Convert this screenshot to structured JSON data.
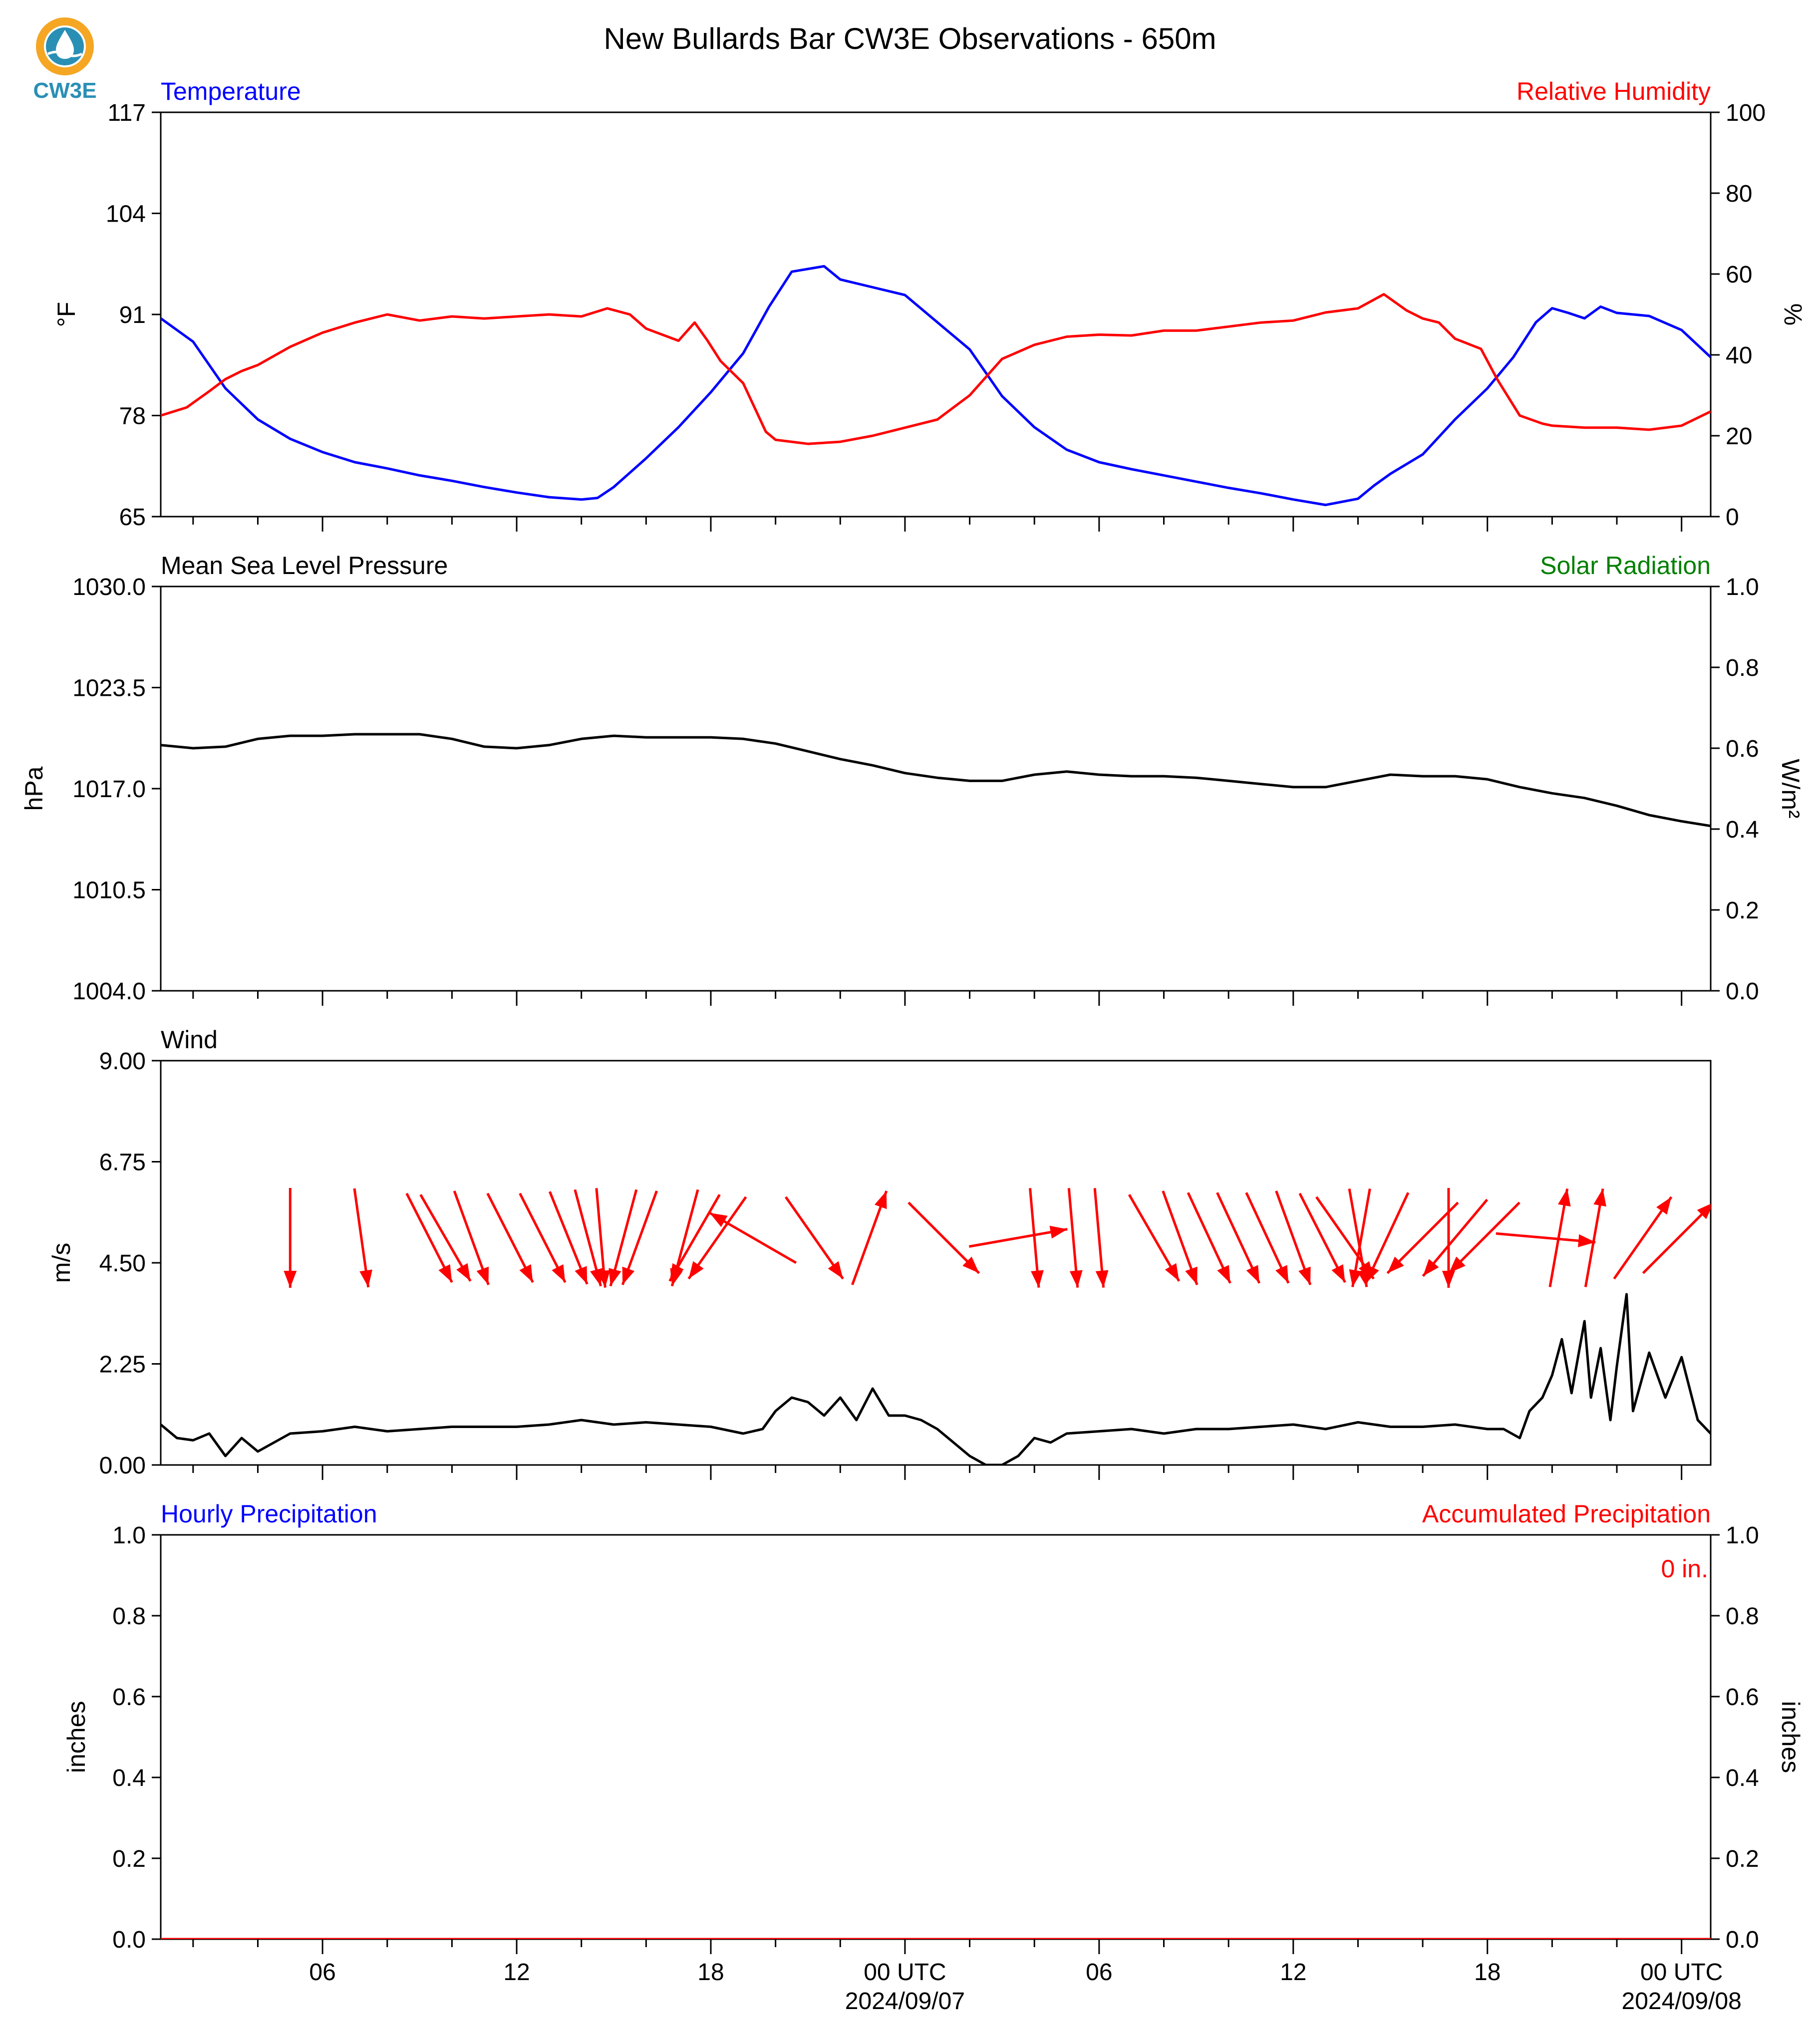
{
  "title": "New Bullards Bar CW3E Observations - 650m",
  "logo": {
    "text": "CW3E",
    "color": "#2a8fb5",
    "ring_color": "#f5a623"
  },
  "time_axis": {
    "start_hour": 1,
    "end_hour": 48.9,
    "tick_labels": [
      {
        "hour": 6,
        "label": "06",
        "date": ""
      },
      {
        "hour": 12,
        "label": "12",
        "date": ""
      },
      {
        "hour": 18,
        "label": "18",
        "date": ""
      },
      {
        "hour": 24,
        "label": "00 UTC",
        "date": "2024/09/07"
      },
      {
        "hour": 30,
        "label": "06",
        "date": ""
      },
      {
        "hour": 36,
        "label": "12",
        "date": ""
      },
      {
        "hour": 42,
        "label": "18",
        "date": ""
      },
      {
        "hour": 48,
        "label": "00 UTC",
        "date": "2024/09/08"
      }
    ]
  },
  "chart_data": [
    {
      "type": "line",
      "id": "temp_rh",
      "left_title": "Temperature",
      "left_title_color": "#0000ff",
      "right_title": "Relative Humidity",
      "right_title_color": "#ff0000",
      "ylabel": "°F",
      "ylabel_right": "%",
      "ylim": [
        65,
        117
      ],
      "ylim_right": [
        0,
        100
      ],
      "yticks": [
        "65",
        "78",
        "91",
        "104",
        "117"
      ],
      "yticks_right": [
        "0",
        "20",
        "40",
        "60",
        "80",
        "100"
      ],
      "series": [
        {
          "axis": "left",
          "color": "#0000ff",
          "x": [
            1,
            2,
            3,
            4,
            5,
            6,
            7,
            8,
            9,
            10,
            11,
            12,
            13,
            14,
            14.5,
            15,
            16,
            17,
            18,
            19,
            19.8,
            20.5,
            21.5,
            22,
            23,
            24,
            25,
            26,
            27,
            28,
            29,
            30,
            31,
            32,
            33,
            34,
            35,
            36,
            37,
            38,
            38.5,
            39,
            40,
            41,
            42,
            42.8,
            43.5,
            44,
            44.5,
            45,
            45.5,
            46,
            47,
            48,
            48.9
          ],
          "y": [
            90.5,
            87.5,
            81.5,
            77.5,
            75,
            73.3,
            72,
            71.2,
            70.3,
            69.6,
            68.8,
            68.1,
            67.5,
            67.2,
            67.4,
            68.8,
            72.5,
            76.5,
            81,
            86,
            92,
            96.5,
            97.2,
            95.5,
            94.5,
            93.5,
            90,
            86.5,
            80.5,
            76.5,
            73.6,
            72,
            71.1,
            70.3,
            69.5,
            68.7,
            68,
            67.2,
            66.5,
            67.3,
            69,
            70.5,
            73,
            77.5,
            81.5,
            85.5,
            90,
            91.8,
            91.2,
            90.5,
            92,
            91.2,
            90.8,
            89,
            85.5
          ]
        },
        {
          "axis": "right",
          "color": "#ff0000",
          "x": [
            1,
            1.8,
            2.5,
            3,
            3.5,
            4,
            5,
            6,
            7,
            8,
            9,
            10,
            11,
            12,
            13,
            14,
            14.8,
            15.5,
            16,
            17,
            17.5,
            17.9,
            18.3,
            19,
            19.7,
            20,
            21,
            22,
            23,
            24,
            25,
            26,
            27,
            28,
            29,
            30,
            31,
            32,
            33,
            34,
            35,
            36,
            37,
            38,
            38.8,
            39.5,
            40,
            40.5,
            41,
            41.8,
            42.3,
            43,
            43.7,
            44,
            45,
            46,
            47,
            48,
            48.9
          ],
          "y": [
            25,
            27,
            31,
            34,
            36,
            37.5,
            42,
            45.5,
            48,
            50,
            48.5,
            49.5,
            49,
            49.5,
            50,
            49.5,
            51.5,
            50,
            46.5,
            43.5,
            48,
            43.5,
            38.5,
            33,
            21,
            19,
            18,
            18.5,
            20,
            22,
            24,
            30,
            39,
            42.5,
            44.5,
            45,
            44.8,
            46,
            46,
            47,
            48,
            48.5,
            50.5,
            51.5,
            55,
            51,
            49,
            48,
            44,
            41.5,
            34,
            25,
            23,
            22.5,
            22,
            22,
            21.5,
            22.5,
            26
          ]
        }
      ]
    },
    {
      "type": "line",
      "id": "pressure",
      "left_title": "Mean Sea Level Pressure",
      "left_title_color": "#000000",
      "right_title": "Solar Radiation",
      "right_title_color": "#007f00",
      "ylabel": "hPa",
      "ylabel_right": "W/m²",
      "ylim": [
        1004.0,
        1030.0
      ],
      "ylim_right": [
        0.0,
        1.0
      ],
      "yticks": [
        "1004.0",
        "1010.5",
        "1017.0",
        "1023.5",
        "1030.0"
      ],
      "yticks_right": [
        "0.0",
        "0.2",
        "0.4",
        "0.6",
        "0.8",
        "1.0"
      ],
      "series": [
        {
          "axis": "left",
          "color": "#000000",
          "x": [
            1,
            2,
            3,
            4,
            5,
            6,
            7,
            8,
            9,
            10,
            11,
            12,
            13,
            14,
            15,
            16,
            17,
            18,
            19,
            20,
            21,
            22,
            23,
            24,
            25,
            26,
            27,
            28,
            29,
            30,
            31,
            32,
            33,
            34,
            35,
            36,
            37,
            38,
            39,
            40,
            41,
            42,
            43,
            44,
            45,
            46,
            47,
            48,
            48.9
          ],
          "y": [
            1019.8,
            1019.6,
            1019.7,
            1020.2,
            1020.4,
            1020.4,
            1020.5,
            1020.5,
            1020.5,
            1020.2,
            1019.7,
            1019.6,
            1019.8,
            1020.2,
            1020.4,
            1020.3,
            1020.3,
            1020.3,
            1020.2,
            1019.9,
            1019.4,
            1018.9,
            1018.5,
            1018.0,
            1017.7,
            1017.5,
            1017.5,
            1017.9,
            1018.1,
            1017.9,
            1017.8,
            1017.8,
            1017.7,
            1017.5,
            1017.3,
            1017.1,
            1017.1,
            1017.5,
            1017.9,
            1017.8,
            1017.8,
            1017.6,
            1017.1,
            1016.7,
            1016.4,
            1015.9,
            1015.3,
            1014.9,
            1014.6
          ]
        }
      ]
    },
    {
      "type": "line",
      "id": "wind",
      "left_title": "Wind",
      "left_title_color": "#000000",
      "ylabel": "m/s",
      "ylim": [
        0.0,
        9.0
      ],
      "yticks": [
        "0.00",
        "2.25",
        "4.50",
        "6.75",
        "9.00"
      ],
      "series": [
        {
          "axis": "left",
          "color": "#000000",
          "x": [
            1,
            1.5,
            2,
            2.5,
            3,
            3.5,
            4,
            5,
            6,
            7,
            8,
            9,
            10,
            11,
            12,
            13,
            14,
            15,
            16,
            17,
            18,
            19,
            19.6,
            20,
            20.5,
            21,
            21.5,
            22,
            22.5,
            23,
            23.5,
            24,
            24.5,
            25,
            25.5,
            26,
            26.5,
            27,
            27.5,
            28,
            28.5,
            29,
            30,
            31,
            32,
            33,
            34,
            35,
            36,
            37,
            38,
            39,
            40,
            41,
            42,
            42.5,
            43,
            43.3,
            43.7,
            44,
            44.3,
            44.6,
            45,
            45.2,
            45.5,
            45.8,
            46,
            46.3,
            46.5,
            47,
            47.5,
            48,
            48.5,
            48.9
          ],
          "y": [
            0.9,
            0.6,
            0.55,
            0.7,
            0.2,
            0.6,
            0.3,
            0.7,
            0.75,
            0.85,
            0.75,
            0.8,
            0.85,
            0.85,
            0.85,
            0.9,
            1.0,
            0.9,
            0.95,
            0.9,
            0.85,
            0.7,
            0.8,
            1.2,
            1.5,
            1.4,
            1.1,
            1.5,
            1.0,
            1.7,
            1.1,
            1.1,
            1.0,
            0.8,
            0.5,
            0.2,
            0.0,
            0.0,
            0.2,
            0.6,
            0.5,
            0.7,
            0.75,
            0.8,
            0.7,
            0.8,
            0.8,
            0.85,
            0.9,
            0.8,
            0.95,
            0.85,
            0.85,
            0.9,
            0.8,
            0.8,
            0.6,
            1.2,
            1.5,
            2.0,
            2.8,
            1.6,
            3.2,
            1.5,
            2.6,
            1.0,
            2.2,
            3.8,
            1.2,
            2.5,
            1.5,
            2.4,
            1.0,
            0.7
          ]
        }
      ],
      "arrows": [
        {
          "x": 5.0,
          "dir_deg": 0
        },
        {
          "x": 7.2,
          "dir_deg": 352
        },
        {
          "x": 9.3,
          "dir_deg": 333
        },
        {
          "x": 9.8,
          "dir_deg": 330
        },
        {
          "x": 10.6,
          "dir_deg": 340
        },
        {
          "x": 11.8,
          "dir_deg": 333
        },
        {
          "x": 12.8,
          "dir_deg": 333
        },
        {
          "x": 13.6,
          "dir_deg": 338
        },
        {
          "x": 14.2,
          "dir_deg": 345
        },
        {
          "x": 14.6,
          "dir_deg": 355
        },
        {
          "x": 15.3,
          "dir_deg": 15
        },
        {
          "x": 15.8,
          "dir_deg": 20
        },
        {
          "x": 17.2,
          "dir_deg": 15
        },
        {
          "x": 17.5,
          "dir_deg": 30
        },
        {
          "x": 18.2,
          "dir_deg": 35
        },
        {
          "x": 19.3,
          "dir_deg": 120
        },
        {
          "x": 21.2,
          "dir_deg": 325
        },
        {
          "x": 22.9,
          "dir_deg": 200
        },
        {
          "x": 25.2,
          "dir_deg": 315
        },
        {
          "x": 27.5,
          "dir_deg": 260
        },
        {
          "x": 28.0,
          "dir_deg": 355
        },
        {
          "x": 29.2,
          "dir_deg": 355
        },
        {
          "x": 30.0,
          "dir_deg": 355
        },
        {
          "x": 31.7,
          "dir_deg": 330
        },
        {
          "x": 32.5,
          "dir_deg": 340
        },
        {
          "x": 33.4,
          "dir_deg": 335
        },
        {
          "x": 34.3,
          "dir_deg": 335
        },
        {
          "x": 35.2,
          "dir_deg": 335
        },
        {
          "x": 36.0,
          "dir_deg": 340
        },
        {
          "x": 36.9,
          "dir_deg": 333
        },
        {
          "x": 37.6,
          "dir_deg": 325
        },
        {
          "x": 38.0,
          "dir_deg": 350
        },
        {
          "x": 38.1,
          "dir_deg": 10
        },
        {
          "x": 38.9,
          "dir_deg": 25
        },
        {
          "x": 40.0,
          "dir_deg": 45
        },
        {
          "x": 40.8,
          "dir_deg": 0
        },
        {
          "x": 41.0,
          "dir_deg": 40
        },
        {
          "x": 41.9,
          "dir_deg": 45
        },
        {
          "x": 43.8,
          "dir_deg": 275
        },
        {
          "x": 44.2,
          "dir_deg": 190
        },
        {
          "x": 45.3,
          "dir_deg": 190
        },
        {
          "x": 46.8,
          "dir_deg": 215
        },
        {
          "x": 47.9,
          "dir_deg": 225
        }
      ]
    },
    {
      "type": "line",
      "id": "precip",
      "left_title": "Hourly Precipitation",
      "left_title_color": "#0000ff",
      "right_title": "Accumulated Precipitation",
      "right_title_color": "#ff0000",
      "ylabel": "inches",
      "ylabel_right": "inches",
      "ylim": [
        0.0,
        1.0
      ],
      "ylim_right": [
        0.0,
        1.0
      ],
      "yticks": [
        "0.0",
        "0.2",
        "0.4",
        "0.6",
        "0.8",
        "1.0"
      ],
      "yticks_right": [
        "0.0",
        "0.2",
        "0.4",
        "0.6",
        "0.8",
        "1.0"
      ],
      "annotation": "0 in.",
      "series": [
        {
          "axis": "right",
          "color": "#ff0000",
          "x": [
            1,
            48.9
          ],
          "y": [
            0,
            0
          ]
        }
      ]
    }
  ]
}
